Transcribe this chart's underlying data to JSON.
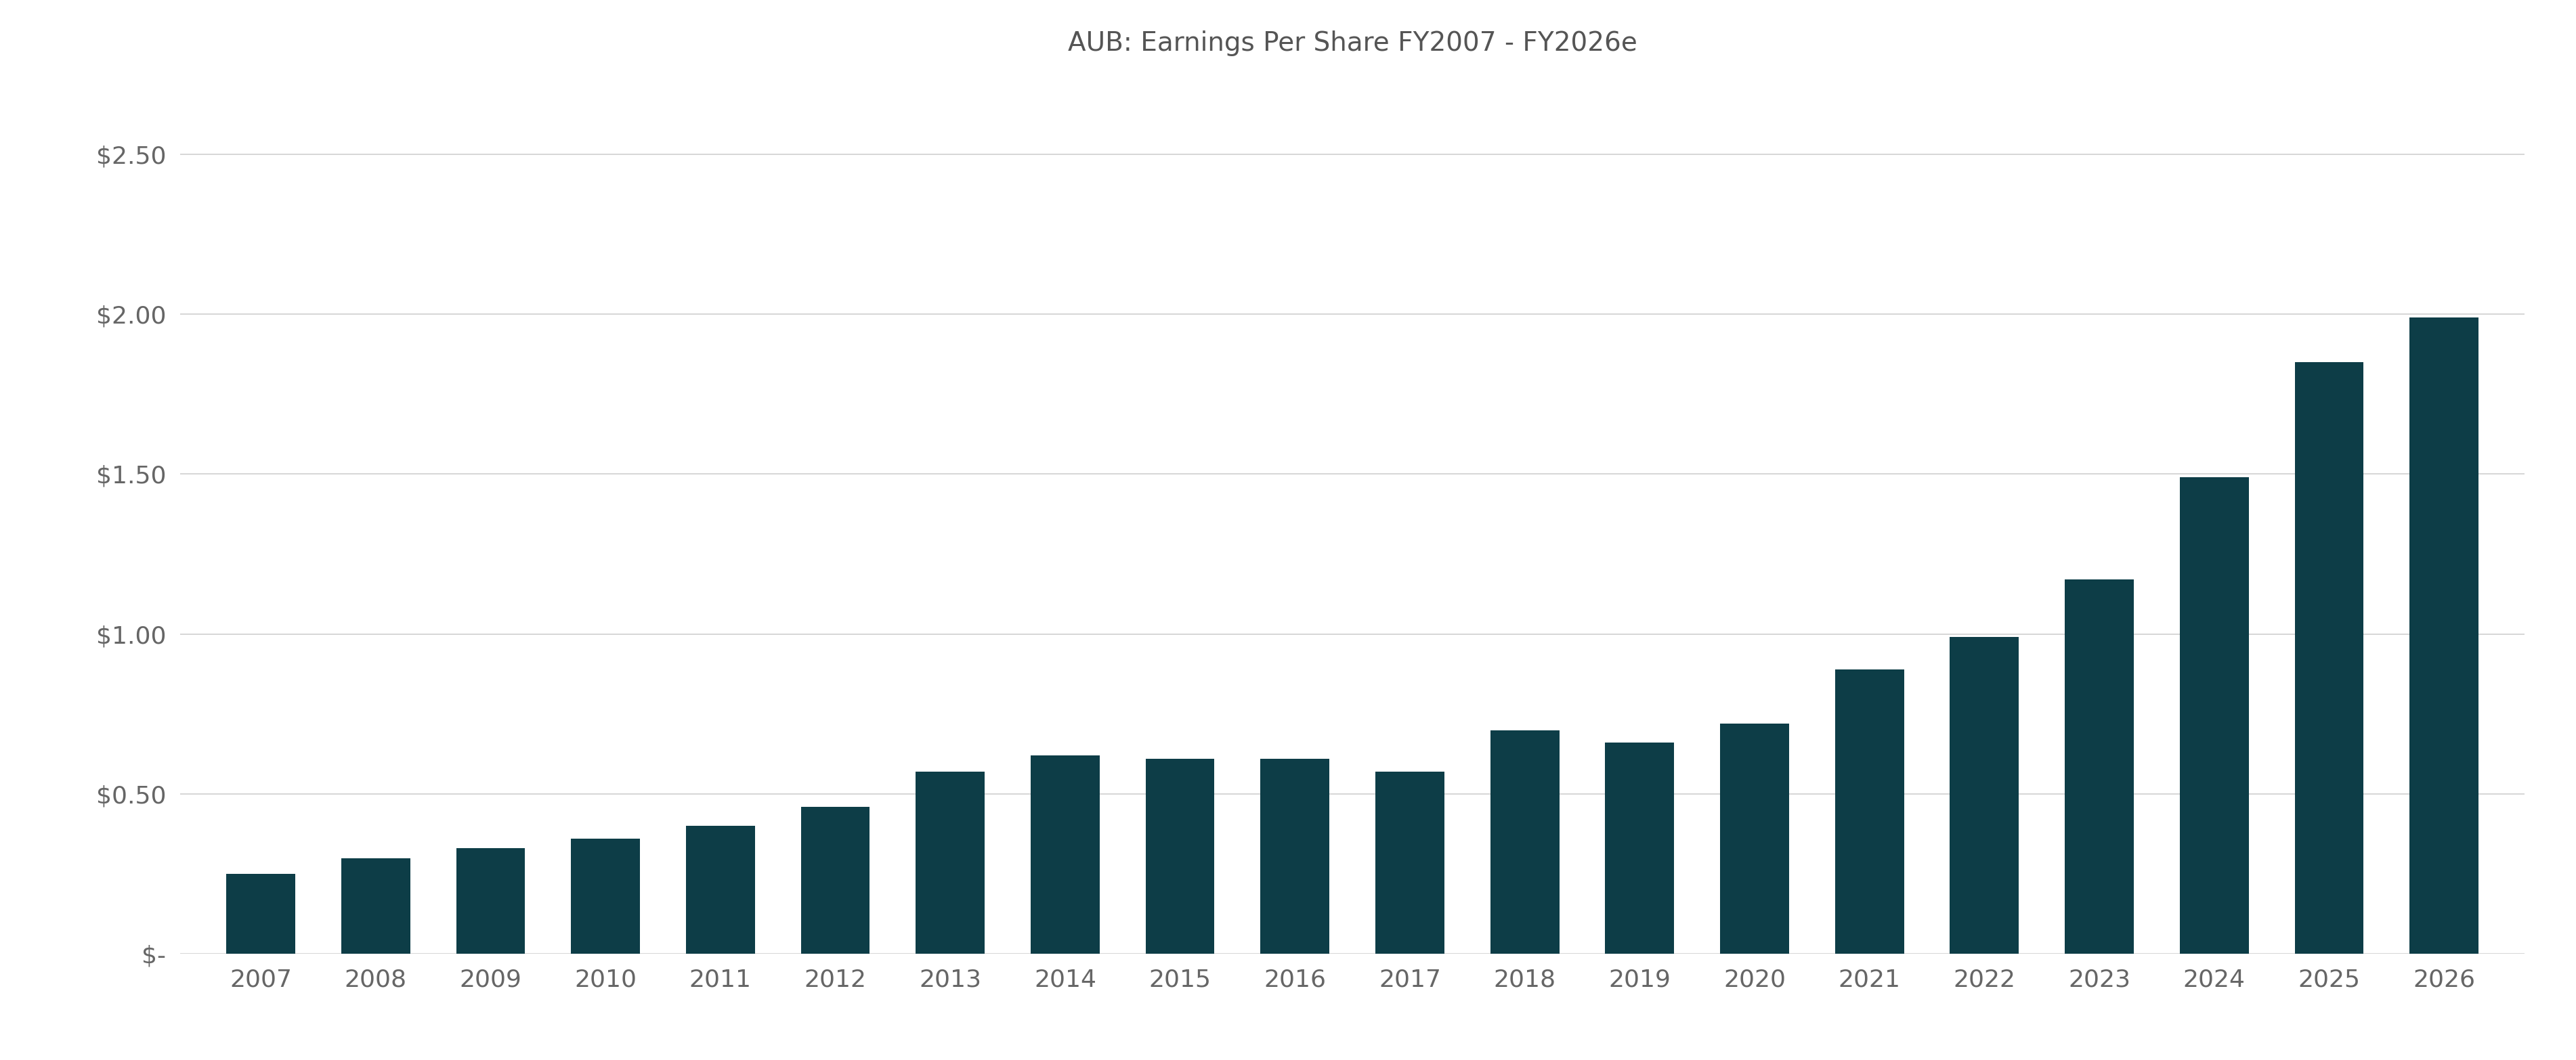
{
  "title": "AUB: Earnings Per Share FY2007 - FY2026e",
  "categories": [
    "2007",
    "2008",
    "2009",
    "2010",
    "2011",
    "2012",
    "2013",
    "2014",
    "2015",
    "2016",
    "2017",
    "2018",
    "2019",
    "2020",
    "2021",
    "2022",
    "2023",
    "2024",
    "2025",
    "2026"
  ],
  "values": [
    0.25,
    0.3,
    0.33,
    0.36,
    0.4,
    0.46,
    0.57,
    0.62,
    0.61,
    0.61,
    0.57,
    0.7,
    0.66,
    0.72,
    0.89,
    0.99,
    1.17,
    1.49,
    1.85,
    1.99
  ],
  "bar_color": "#0d3d47",
  "background_color": "#ffffff",
  "ylim": [
    0,
    2.75
  ],
  "ytick_values": [
    0,
    0.5,
    1.0,
    1.5,
    2.0,
    2.5
  ],
  "ytick_labels": [
    "$-",
    "$0.50",
    "$1.00",
    "$1.50",
    "$2.00",
    "$2.50"
  ],
  "title_fontsize": 28,
  "tick_fontsize": 26,
  "grid_color": "#d0d0d0",
  "title_color": "#555555",
  "tick_color": "#666666"
}
